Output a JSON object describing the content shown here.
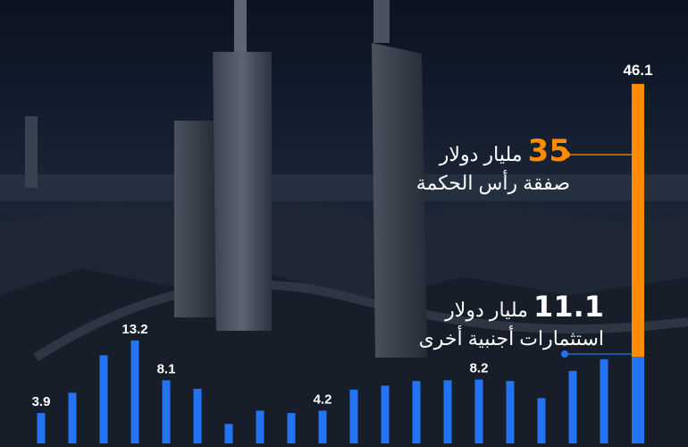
{
  "chart_data": {
    "type": "bar",
    "values": [
      3.9,
      6.5,
      11.3,
      13.2,
      8.1,
      7.0,
      2.5,
      4.2,
      3.9,
      4.2,
      6.9,
      7.4,
      8.0,
      8.1,
      8.2,
      8.0,
      5.8,
      9.3,
      10.8
    ],
    "labeled": {
      "0": "3.9",
      "3": "13.2",
      "4": "8.1",
      "9": "4.2",
      "14": "8.2"
    },
    "last_bar": {
      "total": 46.1,
      "total_label": "46.1",
      "segments": [
        {
          "value": 11.1,
          "color": "#2374f2"
        },
        {
          "value": 35,
          "color": "#ff8c00"
        }
      ]
    },
    "ylim": [
      0,
      47
    ],
    "colors": {
      "bar": "#2374f2",
      "highlight": "#ff8c00",
      "background": "#0c1524"
    }
  },
  "annotations": {
    "orange": {
      "value": "35",
      "unit": "مليار دولار",
      "label": "صفقة رأس الحكمة"
    },
    "blue": {
      "value": "11.1",
      "unit": "مليار دولار",
      "label": "استثمارات أجنبية أخرى"
    }
  }
}
